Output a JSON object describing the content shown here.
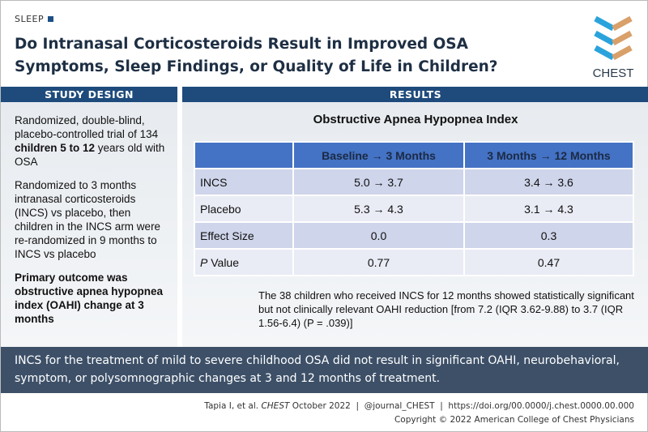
{
  "category": "SLEEP",
  "title": "Do Intranasal Corticosteroids Result in Improved OSA Symptoms, Sleep Findings, or Quality of Life in Children?",
  "logo_text": "CHEST",
  "study_design": {
    "header": "STUDY DESIGN",
    "p1_pre": "Randomized, double-blind, placebo-controlled trial of 134 ",
    "p1_bold": "children 5 to 12",
    "p1_post": " years old with OSA",
    "p2": "Randomized to 3 months intranasal corticosteroids (INCS) vs placebo, then children in the INCS arm were re-randomized in 9 months to INCS vs placebo",
    "p3": "Primary outcome was obstructive apnea hypopnea index (OAHI) change at 3 months"
  },
  "results": {
    "header": "RESULTS",
    "table_title": "Obstructive Apnea Hypopnea Index",
    "columns": [
      "",
      "Baseline → 3 Months",
      "3 Months → 12 Months"
    ],
    "rows": [
      [
        "INCS",
        "5.0 → 3.7",
        "3.4 → 3.6"
      ],
      [
        "Placebo",
        "5.3 → 4.3",
        "3.1 → 4.3"
      ],
      [
        "Effect Size",
        "0.0",
        "0.3"
      ],
      [
        "P",
        "0.77",
        "0.47"
      ]
    ],
    "p_value_suffix": " Value",
    "note": "The 38 children who received INCS for 12 months showed statistically significant but not clinically relevant OAHI reduction [from 7.2 (IQR 3.62-9.88) to 3.7 (IQR 1.56-6.4) (P = .039)]"
  },
  "conclusion": "INCS for the treatment of mild to severe childhood OSA did not result in significant OAHI, neurobehavioral, symptom, or polysomnographic changes at 3 and 12 months of treatment.",
  "footer": {
    "citation_pre": "Tapia I, et al. ",
    "journal": "CHEST",
    "citation_post": " October 2022  |  @journal_CHEST  |  https://doi.org/00.0000/j.chest.0000.00.000",
    "copyright": "Copyright © 2022 American College of Chest Physicians"
  }
}
